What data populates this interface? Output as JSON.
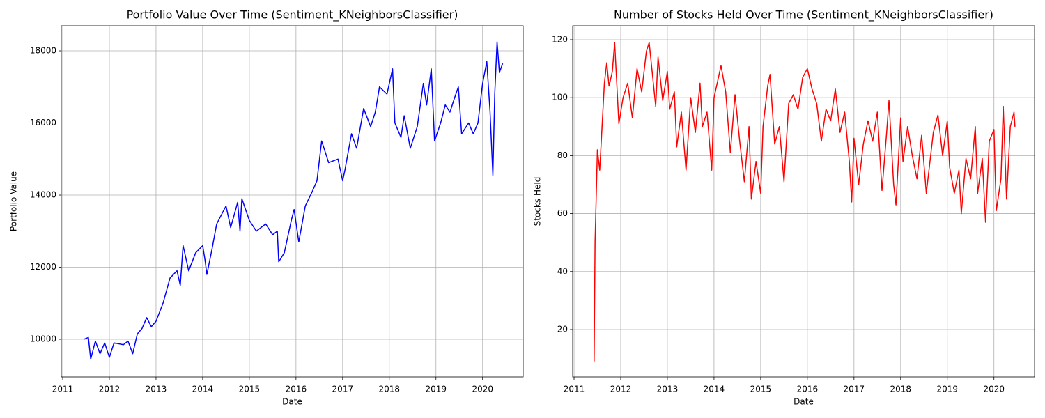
{
  "chart_data": [
    {
      "type": "line",
      "title": "Portfolio Value Over Time (Sentiment_KNeighborsClassifier)",
      "x_label": "Date",
      "y_label": "Portfolio Value",
      "color": "#0000ff",
      "grid": true,
      "xlim": [
        2010.97,
        2020.87
      ],
      "xticks": [
        2011,
        2012,
        2013,
        2014,
        2015,
        2016,
        2017,
        2018,
        2019,
        2020
      ],
      "ylim": [
        8957,
        18696
      ],
      "yticks": [
        10000,
        12000,
        14000,
        16000,
        18000
      ],
      "x": [
        2011.45,
        2011.55,
        2011.6,
        2011.7,
        2011.8,
        2011.9,
        2012.0,
        2012.1,
        2012.3,
        2012.4,
        2012.5,
        2012.6,
        2012.7,
        2012.8,
        2012.9,
        2013.0,
        2013.15,
        2013.3,
        2013.45,
        2013.52,
        2013.58,
        2013.7,
        2013.85,
        2014.0,
        2014.05,
        2014.09,
        2014.2,
        2014.3,
        2014.5,
        2014.6,
        2014.75,
        2014.8,
        2014.84,
        2015.0,
        2015.15,
        2015.35,
        2015.5,
        2015.6,
        2015.63,
        2015.75,
        2015.9,
        2015.96,
        2016.06,
        2016.2,
        2016.35,
        2016.45,
        2016.55,
        2016.7,
        2016.9,
        2017.0,
        2017.05,
        2017.19,
        2017.3,
        2017.45,
        2017.6,
        2017.7,
        2017.79,
        2017.95,
        2018.07,
        2018.12,
        2018.25,
        2018.32,
        2018.45,
        2018.6,
        2018.73,
        2018.8,
        2018.9,
        2018.97,
        2019.1,
        2019.2,
        2019.3,
        2019.4,
        2019.48,
        2019.55,
        2019.7,
        2019.8,
        2019.9,
        2020.0,
        2020.09,
        2020.16,
        2020.22,
        2020.26,
        2020.31,
        2020.36,
        2020.43
      ],
      "values": [
        10000,
        10050,
        9450,
        9950,
        9600,
        9900,
        9500,
        9900,
        9850,
        9950,
        9600,
        10150,
        10300,
        10600,
        10350,
        10500,
        11000,
        11700,
        11900,
        11500,
        12600,
        11900,
        12400,
        12600,
        12200,
        11800,
        12500,
        13200,
        13700,
        13100,
        13800,
        13000,
        13900,
        13300,
        13000,
        13200,
        12900,
        13000,
        12150,
        12400,
        13300,
        13600,
        12700,
        13700,
        14100,
        14400,
        15500,
        14900,
        15000,
        14400,
        14700,
        15700,
        15300,
        16400,
        15900,
        16300,
        17000,
        16800,
        17500,
        16000,
        15600,
        16200,
        15300,
        15900,
        17100,
        16500,
        17500,
        15500,
        16000,
        16500,
        16300,
        16700,
        17000,
        15700,
        16000,
        15700,
        16000,
        17100,
        17700,
        16300,
        14550,
        16800,
        18250,
        17400,
        17650
      ]
    },
    {
      "type": "line",
      "title": "Number of Stocks Held Over Time (Sentiment_KNeighborsClassifier)",
      "x_label": "Date",
      "y_label": "Stocks Held",
      "color": "#ff0000",
      "grid": true,
      "xlim": [
        2010.97,
        2020.87
      ],
      "xticks": [
        2011,
        2012,
        2013,
        2014,
        2015,
        2016,
        2017,
        2018,
        2019,
        2020
      ],
      "ylim": [
        3.65,
        124.8
      ],
      "yticks": [
        20,
        40,
        60,
        80,
        100,
        120
      ],
      "x": [
        2011.43,
        2011.45,
        2011.5,
        2011.55,
        2011.65,
        2011.7,
        2011.75,
        2011.82,
        2011.87,
        2011.96,
        2012.05,
        2012.15,
        2012.25,
        2012.35,
        2012.45,
        2012.55,
        2012.61,
        2012.75,
        2012.8,
        2012.9,
        2013.0,
        2013.05,
        2013.15,
        2013.2,
        2013.3,
        2013.4,
        2013.5,
        2013.6,
        2013.7,
        2013.75,
        2013.85,
        2013.95,
        2014.0,
        2014.15,
        2014.25,
        2014.35,
        2014.45,
        2014.55,
        2014.65,
        2014.75,
        2014.8,
        2014.9,
        2015.0,
        2015.05,
        2015.15,
        2015.2,
        2015.3,
        2015.4,
        2015.5,
        2015.6,
        2015.7,
        2015.8,
        2015.9,
        2016.0,
        2016.1,
        2016.2,
        2016.3,
        2016.4,
        2016.5,
        2016.6,
        2016.7,
        2016.8,
        2016.9,
        2016.95,
        2017.0,
        2017.1,
        2017.2,
        2017.3,
        2017.4,
        2017.5,
        2017.6,
        2017.7,
        2017.75,
        2017.85,
        2017.9,
        2018.0,
        2018.05,
        2018.15,
        2018.25,
        2018.35,
        2018.45,
        2018.55,
        2018.7,
        2018.8,
        2018.9,
        2019.0,
        2019.05,
        2019.15,
        2019.25,
        2019.3,
        2019.4,
        2019.5,
        2019.6,
        2019.65,
        2019.75,
        2019.82,
        2019.9,
        2020.0,
        2020.05,
        2020.15,
        2020.2,
        2020.27,
        2020.35,
        2020.43,
        2020.45
      ],
      "values": [
        9,
        50,
        82,
        75,
        105,
        112,
        104,
        109,
        119,
        91,
        100,
        105,
        93,
        110,
        102,
        116,
        119,
        97,
        114,
        99,
        109,
        96,
        102,
        83,
        95,
        75,
        100,
        88,
        105,
        90,
        95,
        75,
        100,
        111,
        102,
        81,
        101,
        85,
        71,
        90,
        65,
        78,
        67,
        90,
        104,
        108,
        84,
        90,
        71,
        98,
        101,
        96,
        107,
        110,
        103,
        98,
        85,
        96,
        92,
        103,
        88,
        95,
        78,
        64,
        86,
        70,
        84,
        92,
        85,
        95,
        68,
        88,
        99,
        70,
        63,
        93,
        78,
        90,
        80,
        72,
        87,
        67,
        88,
        94,
        80,
        92,
        76,
        67,
        75,
        60,
        79,
        72,
        90,
        67,
        79,
        57,
        85,
        89,
        61,
        72,
        97,
        65,
        90,
        95,
        90
      ]
    }
  ]
}
